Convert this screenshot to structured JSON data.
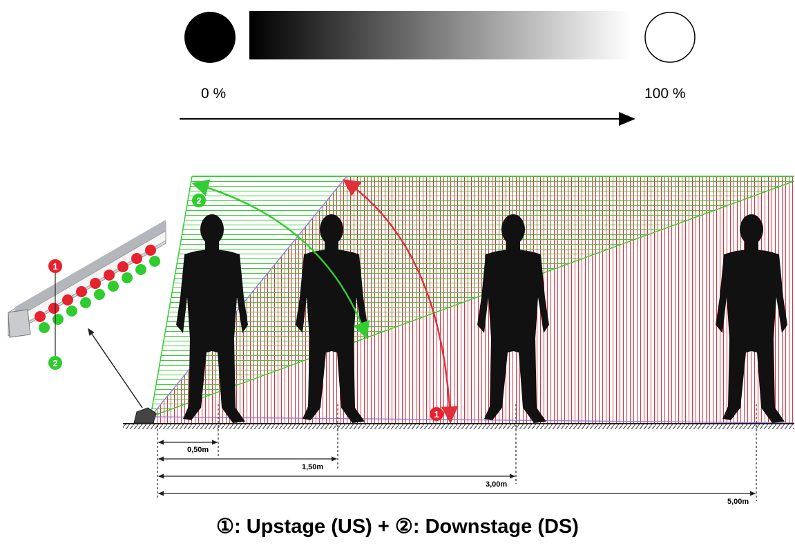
{
  "gradient": {
    "start_label": "0 %",
    "end_label": "100 %",
    "start_color": "#000000",
    "end_color": "#ffffff"
  },
  "markers": {
    "one": "1",
    "two": "2",
    "one_color": "#e8212e",
    "two_color": "#2fcc2f"
  },
  "distances": [
    "0,50m",
    "1,50m",
    "3,00m",
    "5,00m"
  ],
  "caption": "①: Upstage (US) + ②: Downstage (DS)",
  "colors": {
    "upstage_beam": "#e0303c",
    "downstage_beam": "#33cc33",
    "silhouette": "#111111"
  }
}
